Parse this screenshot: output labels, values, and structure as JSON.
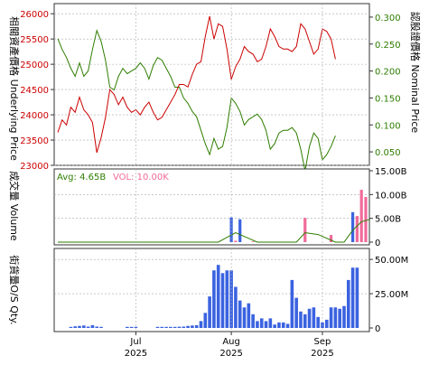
{
  "colors": {
    "underlying": "#cc0000",
    "nominal": "#2e7d00",
    "volume_red": "#f06b9a",
    "volume_blue": "#3b63e0",
    "bars": "#3b63e0",
    "avg_line": "#2e7d00",
    "grid": "#aaaaaa"
  },
  "chart_data": [
    {
      "type": "line",
      "ylabel": "相關資產價格 Underlying Price",
      "y2label": "認股證價格 Nominal Price",
      "ylim": [
        23000,
        26200
      ],
      "y2lim": [
        0.025,
        0.325
      ],
      "yticks": [
        "26000",
        "25500",
        "25000",
        "24500",
        "24000",
        "23500",
        "23000"
      ],
      "y2ticks": [
        "0.300",
        "0.250",
        "0.200",
        "0.150",
        "0.100",
        "0.050"
      ],
      "grid": true,
      "series": [
        {
          "name": "Underlying Price",
          "axis": "left",
          "values": [
            23650,
            23900,
            23800,
            24150,
            24050,
            24350,
            24100,
            24000,
            23850,
            23250,
            23550,
            23950,
            24500,
            24400,
            24200,
            24350,
            24150,
            24050,
            24100,
            24000,
            24150,
            24250,
            24050,
            23900,
            23950,
            24100,
            24250,
            24400,
            24600,
            24600,
            24550,
            24800,
            25000,
            25050,
            25550,
            25950,
            25500,
            25800,
            25750,
            25300,
            24700,
            24950,
            25100,
            25350,
            25250,
            25200,
            25050,
            25100,
            25350,
            25700,
            25550,
            25350,
            25300,
            25300,
            25250,
            25350,
            25800,
            25700,
            25450,
            25200,
            25300,
            25700,
            25650,
            25500,
            25100
          ],
          "color": "#cc0000"
        },
        {
          "name": "Nominal Price",
          "axis": "right",
          "values": [
            0.26,
            0.24,
            0.225,
            0.205,
            0.19,
            0.215,
            0.19,
            0.2,
            0.24,
            0.275,
            0.255,
            0.22,
            0.17,
            0.165,
            0.19,
            0.205,
            0.195,
            0.2,
            0.205,
            0.215,
            0.205,
            0.185,
            0.21,
            0.225,
            0.22,
            0.205,
            0.19,
            0.17,
            0.17,
            0.15,
            0.14,
            0.125,
            0.115,
            0.09,
            0.065,
            0.045,
            0.075,
            0.055,
            0.06,
            0.095,
            0.15,
            0.14,
            0.125,
            0.1,
            0.11,
            0.115,
            0.12,
            0.11,
            0.09,
            0.055,
            0.065,
            0.085,
            0.09,
            0.09,
            0.095,
            0.085,
            0.055,
            0.015,
            0.06,
            0.085,
            0.075,
            0.035,
            0.045,
            0.06,
            0.08
          ]
        }
      ]
    },
    {
      "type": "bar",
      "ylabel": "成交量 Volume",
      "ylim": [
        0,
        15000000000
      ],
      "yticks": [
        "15.00B",
        "10.00B",
        "5.00B",
        "0"
      ],
      "legend": [
        {
          "text": "Avg: 4.65B",
          "color": "#2e7d00"
        },
        {
          "text": "VOL: 10.00K",
          "color": "#f06b9a"
        }
      ],
      "series": [
        {
          "name": "Volume",
          "values": [
            {
              "i": 40,
              "v": 5200000000,
              "c": "blue"
            },
            {
              "i": 41,
              "v": 300000000,
              "c": "red"
            },
            {
              "i": 42,
              "v": 4800000000,
              "c": "blue"
            },
            {
              "i": 45,
              "v": 150000000,
              "c": "red"
            },
            {
              "i": 57,
              "v": 5100000000,
              "c": "red"
            },
            {
              "i": 63,
              "v": 1500000000,
              "c": "red"
            },
            {
              "i": 68,
              "v": 6300000000,
              "c": "blue"
            },
            {
              "i": 69,
              "v": 5500000000,
              "c": "red"
            },
            {
              "i": 70,
              "v": 11000000000,
              "c": "red"
            },
            {
              "i": 71,
              "v": 9500000000,
              "c": "red"
            }
          ]
        },
        {
          "name": "Avg",
          "values": [
            {
              "i": 0,
              "v": 0
            },
            {
              "i": 37,
              "v": 0
            },
            {
              "i": 41,
              "v": 2000000000
            },
            {
              "i": 44,
              "v": 800000000
            },
            {
              "i": 46,
              "v": 0
            },
            {
              "i": 55,
              "v": 0
            },
            {
              "i": 57,
              "v": 2000000000
            },
            {
              "i": 60,
              "v": 1600000000
            },
            {
              "i": 64,
              "v": 0
            },
            {
              "i": 66,
              "v": 0
            },
            {
              "i": 68,
              "v": 2500000000
            },
            {
              "i": 70,
              "v": 4300000000
            },
            {
              "i": 72,
              "v": 4800000000
            }
          ]
        }
      ]
    },
    {
      "type": "bar",
      "ylabel": "街貨量O/S Qty.",
      "ylim": [
        0,
        58000000
      ],
      "yticks": [
        "50.00M",
        "25.00M",
        "0"
      ],
      "xticks": [
        {
          "label": "Jul",
          "year": "2025",
          "i": 18
        },
        {
          "label": "Aug",
          "year": "2025",
          "i": 40
        },
        {
          "label": "Sep",
          "year": "2025",
          "i": 61
        }
      ],
      "series": [
        {
          "name": "O/S Qty.",
          "values": [
            0,
            0,
            0,
            800000,
            1200000,
            1500000,
            1800000,
            1000000,
            2000000,
            1000000,
            800000,
            0,
            0,
            0,
            0,
            0,
            800000,
            800000,
            800000,
            0,
            0,
            0,
            0,
            800000,
            800000,
            800000,
            800000,
            800000,
            900000,
            1000000,
            1500000,
            1800000,
            2000000,
            5000000,
            11000000,
            23000000,
            42000000,
            46000000,
            40000000,
            42000000,
            42000000,
            30000000,
            20000000,
            15000000,
            18000000,
            10000000,
            5000000,
            7000000,
            5000000,
            7000000,
            2500000,
            4000000,
            4000000,
            3000000,
            35000000,
            22000000,
            12000000,
            10000000,
            14000000,
            15000000,
            8000000,
            4000000,
            6000000,
            15000000,
            15000000,
            14000000,
            16000000,
            35000000,
            44000000,
            44000000
          ]
        }
      ]
    }
  ]
}
